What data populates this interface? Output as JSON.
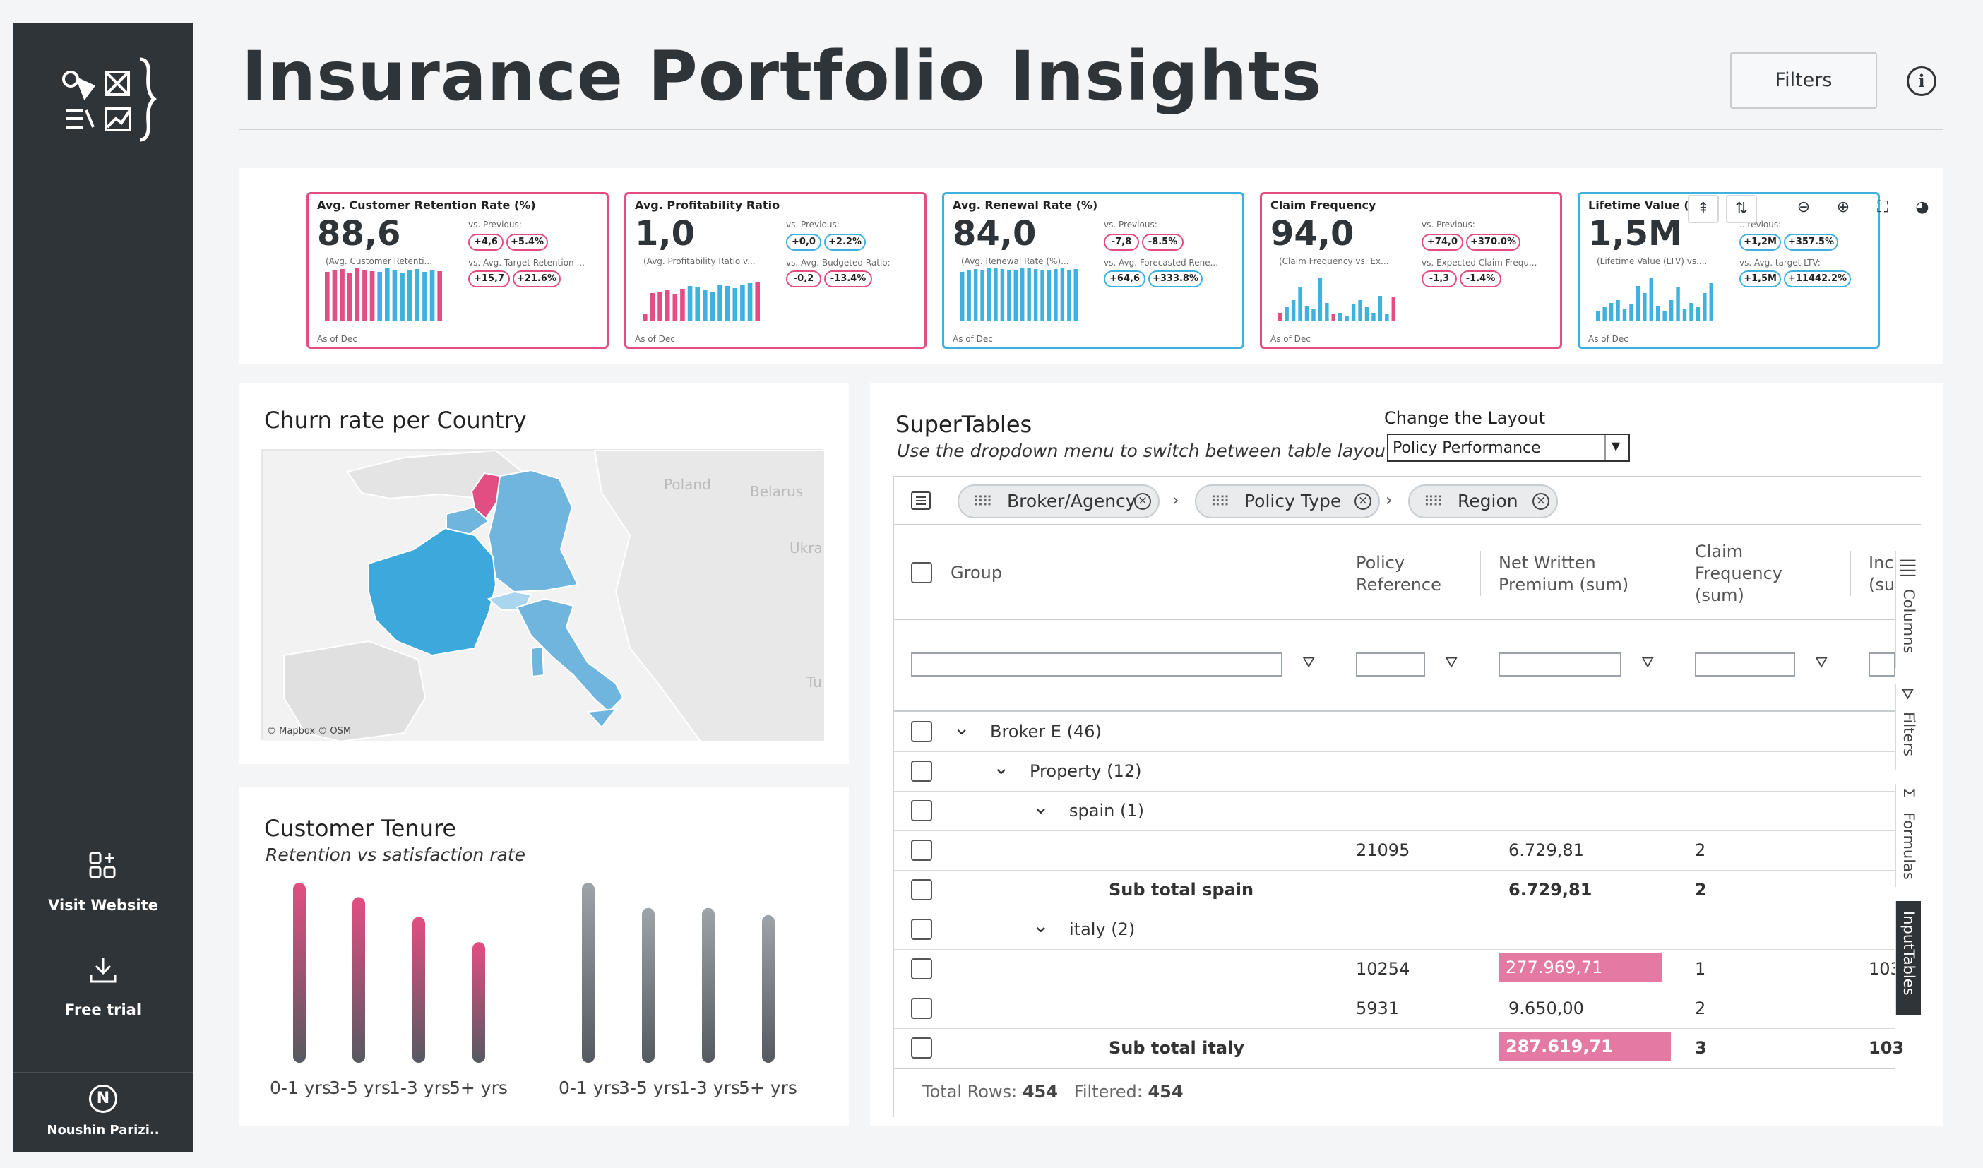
{
  "header": {
    "title": "Insurance Portfolio Insights",
    "filters_label": "Filters",
    "info_label": "i"
  },
  "sidebar": {
    "visit_label": "Visit Website",
    "trial_label": "Free trial",
    "user_initial": "N",
    "user_name": "Noushin Parizi.."
  },
  "kpis": [
    {
      "title": "Avg. Customer Retention Rate (%)",
      "value": "88,6",
      "sub": "(Avg. Customer Retenti...",
      "prev_label": "vs. Previous:",
      "prev": [
        "+4,6",
        "+5.4%"
      ],
      "target_label": "vs. Avg. Target Retention ...",
      "target": [
        "+15,7",
        "+21.6%"
      ],
      "as_of": "As of Dec",
      "border": "#e34e82"
    },
    {
      "title": "Avg. Profitability Ratio",
      "value": "1,0",
      "sub": "(Avg. Profitability Ratio v...",
      "prev_label": "vs. Previous:",
      "prev": [
        "+0,0",
        "+2.2%"
      ],
      "target_label": "vs. Avg. Budgeted Ratio:",
      "target": [
        "-0,2",
        "-13.4%"
      ],
      "as_of": "As of Dec",
      "border": "#e34e82"
    },
    {
      "title": "Avg. Renewal Rate (%)",
      "value": "84,0",
      "sub": "(Avg. Renewal Rate (%)...",
      "prev_label": "vs. Previous:",
      "prev": [
        "-7,8",
        "-8.5%"
      ],
      "target_label": "vs. Avg. Forecasted Rene...",
      "target": [
        "+64,6",
        "+333.8%"
      ],
      "as_of": "As of Dec",
      "border": "#3fb1df"
    },
    {
      "title": "Claim Frequency",
      "value": "94,0",
      "sub": "(Claim Frequency vs. Ex...",
      "prev_label": "vs. Previous:",
      "prev": [
        "+74,0",
        "+370.0%"
      ],
      "target_label": "vs. Expected Claim Frequ...",
      "target": [
        "-1,3",
        "-1.4%"
      ],
      "as_of": "As of Dec",
      "border": "#e34e82"
    },
    {
      "title": "Lifetime Value (LT",
      "value": "1,5M",
      "sub": "(Lifetime Value (LTV) vs....",
      "prev_label": "...revious:",
      "prev": [
        "+1,2M",
        "+357.5%"
      ],
      "target_label": "vs. Avg. target LTV:",
      "target": [
        "+1,5M",
        "+11442.2%"
      ],
      "as_of": "As of Dec",
      "border": "#3fb1df"
    }
  ],
  "map": {
    "title": "Churn rate per Country",
    "attribution": "© Mapbox © OSM",
    "labels": [
      "Poland",
      "Belarus",
      "Ukra",
      "Tu"
    ],
    "colors": {
      "low": "#a9d6ee",
      "mid": "#6fb5de",
      "high": "#3da8dc",
      "highlight": "#e34e82"
    }
  },
  "tenure": {
    "title": "Customer Tenure",
    "subtitle": "Retention vs satisfaction rate",
    "categories_left": [
      "0-1 yrs",
      "3-5 yrs",
      "1-3 yrs",
      "5+ yrs"
    ],
    "categories_right": [
      "0-1 yrs",
      "3-5 yrs",
      "1-3 yrs",
      "5+ yrs"
    ],
    "retention": [
      100,
      92,
      81,
      67
    ],
    "satisfaction": [
      100,
      86,
      86,
      82
    ]
  },
  "supertables": {
    "title": "SuperTables",
    "subtitle": "Use the dropdown menu to switch between table layouts.",
    "layout_label": "Change the Layout",
    "layout_value": "Policy Performance",
    "chips": [
      "Broker/Agency",
      "Policy Type",
      "Region"
    ],
    "columns": [
      "Group",
      "Policy Reference",
      "Net Written Premium (sum)",
      "Claim Frequency (sum)",
      "Inc (su"
    ],
    "rows": [
      {
        "group": "Broker E (46)",
        "level": 0,
        "expander": "v",
        "ref": "",
        "nwp": "",
        "cf": "",
        "inc": "",
        "bold": false,
        "hl": false
      },
      {
        "group": "Property (12)",
        "level": 1,
        "expander": "v",
        "ref": "",
        "nwp": "",
        "cf": "",
        "inc": "",
        "bold": false,
        "hl": false
      },
      {
        "group": "spain (1)",
        "level": 2,
        "expander": "v",
        "ref": "",
        "nwp": "",
        "cf": "",
        "inc": "",
        "bold": false,
        "hl": false
      },
      {
        "group": "",
        "level": 3,
        "expander": "",
        "ref": "21095",
        "nwp": "6.729,81",
        "cf": "2",
        "inc": "",
        "bold": false,
        "hl": false
      },
      {
        "group": "Sub total spain",
        "level": 3,
        "expander": "",
        "ref": "",
        "nwp": "6.729,81",
        "cf": "2",
        "inc": "",
        "bold": true,
        "hl": false
      },
      {
        "group": "italy (2)",
        "level": 2,
        "expander": "v",
        "ref": "",
        "nwp": "",
        "cf": "",
        "inc": "",
        "bold": false,
        "hl": false
      },
      {
        "group": "",
        "level": 3,
        "expander": "",
        "ref": "10254",
        "nwp": "277.969,71",
        "cf": "1",
        "inc": "103",
        "bold": false,
        "hl": true
      },
      {
        "group": "",
        "level": 3,
        "expander": "",
        "ref": "5931",
        "nwp": "9.650,00",
        "cf": "2",
        "inc": "",
        "bold": false,
        "hl": false
      },
      {
        "group": "Sub total italy",
        "level": 3,
        "expander": "",
        "ref": "",
        "nwp": "287.619,71",
        "cf": "3",
        "inc": "103",
        "bold": true,
        "hl": true
      }
    ],
    "footer": {
      "total_label": "Total Rows:",
      "total": "454",
      "filtered_label": "Filtered:",
      "filtered": "454"
    },
    "side_tabs": [
      "Columns",
      "Filters",
      "Formulas",
      "InputTables"
    ]
  },
  "toolbar_icons": [
    "align-top-icon",
    "sort-icon",
    "zoom-out-icon",
    "zoom-in-icon",
    "fullscreen-icon",
    "palette-icon"
  ]
}
